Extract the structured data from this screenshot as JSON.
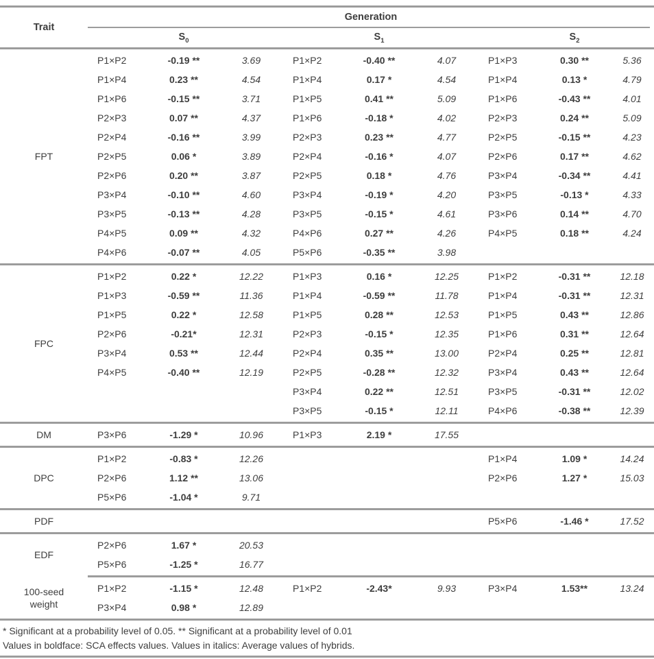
{
  "header": {
    "trait_label": "Trait",
    "generation_label": "Generation",
    "generations": [
      {
        "base": "S",
        "sub": "0"
      },
      {
        "base": "S",
        "sub": "1"
      },
      {
        "base": "S",
        "sub": "2"
      }
    ]
  },
  "table": {
    "groups": [
      {
        "trait": "FPT",
        "rows": [
          [
            [
              "P1×P2",
              "-0.19 **",
              "3.69"
            ],
            [
              "P1×P2",
              "-0.40 **",
              "4.07"
            ],
            [
              "P1×P3",
              "0.30 **",
              "5.36"
            ]
          ],
          [
            [
              "P1×P4",
              "0.23 **",
              "4.54"
            ],
            [
              "P1×P4",
              "0.17 *",
              "4.54"
            ],
            [
              "P1×P4",
              "0.13 *",
              "4.79"
            ]
          ],
          [
            [
              "P1×P6",
              "-0.15 **",
              "3.71"
            ],
            [
              "P1×P5",
              "0.41 **",
              "5.09"
            ],
            [
              "P1×P6",
              "-0.43 **",
              "4.01"
            ]
          ],
          [
            [
              "P2×P3",
              "0.07 **",
              "4.37"
            ],
            [
              "P1×P6",
              "-0.18 *",
              "4.02"
            ],
            [
              "P2×P3",
              "0.24 **",
              "5.09"
            ]
          ],
          [
            [
              "P2×P4",
              "-0.16 **",
              "3.99"
            ],
            [
              "P2×P3",
              "0.23 **",
              "4.77"
            ],
            [
              "P2×P5",
              "-0.15 **",
              "4.23"
            ]
          ],
          [
            [
              "P2×P5",
              "0.06 *",
              "3.89"
            ],
            [
              "P2×P4",
              "-0.16 *",
              "4.07"
            ],
            [
              "P2×P6",
              "0.17 **",
              "4.62"
            ]
          ],
          [
            [
              "P2×P6",
              "0.20 **",
              "3.87"
            ],
            [
              "P2×P5",
              "0.18 *",
              "4.76"
            ],
            [
              "P3×P4",
              "-0.34 **",
              "4.41"
            ]
          ],
          [
            [
              "P3×P4",
              "-0.10 **",
              "4.60"
            ],
            [
              "P3×P4",
              "-0.19 *",
              "4.20"
            ],
            [
              "P3×P5",
              "-0.13 *",
              "4.33"
            ]
          ],
          [
            [
              "P3×P5",
              "-0.13 **",
              "4.28"
            ],
            [
              "P3×P5",
              "-0.15 *",
              "4.61"
            ],
            [
              "P3×P6",
              "0.14 **",
              "4.70"
            ]
          ],
          [
            [
              "P4×P5",
              "0.09 **",
              "4.32"
            ],
            [
              "P4×P6",
              "0.27 **",
              "4.26"
            ],
            [
              "P4×P5",
              "0.18 **",
              "4.24"
            ]
          ],
          [
            [
              "P4×P6",
              "-0.07 **",
              "4.05"
            ],
            [
              "P5×P6",
              "-0.35 **",
              "3.98"
            ],
            null
          ]
        ]
      },
      {
        "trait": "FPC",
        "rows": [
          [
            [
              "P1×P2",
              "0.22 *",
              "12.22"
            ],
            [
              "P1×P3",
              "0.16 *",
              "12.25"
            ],
            [
              "P1×P2",
              "-0.31 **",
              "12.18"
            ]
          ],
          [
            [
              "P1×P3",
              "-0.59 **",
              "11.36"
            ],
            [
              "P1×P4",
              "-0.59 **",
              "11.78"
            ],
            [
              "P1×P4",
              "-0.31 **",
              "12.31"
            ]
          ],
          [
            [
              "P1×P5",
              "0.22 *",
              "12.58"
            ],
            [
              "P1×P5",
              "0.28 **",
              "12.53"
            ],
            [
              "P1×P5",
              "0.43 **",
              "12.86"
            ]
          ],
          [
            [
              "P2×P6",
              "-0.21*",
              "12.31"
            ],
            [
              "P2×P3",
              "-0.15 *",
              "12.35"
            ],
            [
              "P1×P6",
              "0.31 **",
              "12.64"
            ]
          ],
          [
            [
              "P3×P4",
              "0.53 **",
              "12.44"
            ],
            [
              "P2×P4",
              "0.35 **",
              "13.00"
            ],
            [
              "P2×P4",
              "0.25 **",
              "12.81"
            ]
          ],
          [
            [
              "P4×P5",
              "-0.40 **",
              "12.19"
            ],
            [
              "P2×P5",
              "-0.28 **",
              "12.32"
            ],
            [
              "P3×P4",
              "0.43 **",
              "12.64"
            ]
          ],
          [
            null,
            [
              "P3×P4",
              "0.22 **",
              "12.51"
            ],
            [
              "P3×P5",
              "-0.31 **",
              "12.02"
            ]
          ],
          [
            null,
            [
              "P3×P5",
              "-0.15 *",
              "12.11"
            ],
            [
              "P4×P6",
              "-0.38 **",
              "12.39"
            ]
          ]
        ]
      },
      {
        "trait": "DM",
        "rows": [
          [
            [
              "P3×P6",
              "-1.29 *",
              "10.96"
            ],
            [
              "P1×P3",
              "2.19 *",
              "17.55"
            ],
            null
          ]
        ]
      },
      {
        "trait": "DPC",
        "rows": [
          [
            [
              "P1×P2",
              "-0.83 *",
              "12.26"
            ],
            null,
            [
              "P1×P4",
              "1.09 *",
              "14.24"
            ]
          ],
          [
            [
              "P2×P6",
              "1.12 **",
              "13.06"
            ],
            null,
            [
              "P2×P6",
              "1.27 *",
              "15.03"
            ]
          ],
          [
            [
              "P5×P6",
              "-1.04 *",
              "9.71"
            ],
            null,
            null
          ]
        ]
      },
      {
        "trait": "PDF",
        "rows": [
          [
            null,
            null,
            [
              "P5×P6",
              "-1.46 *",
              "17.52"
            ]
          ]
        ]
      },
      {
        "trait": "EDF",
        "rows": [
          [
            [
              "P2×P6",
              "1.67 *",
              "20.53"
            ],
            null,
            null
          ],
          [
            [
              "P5×P6",
              "-1.25 *",
              "16.77"
            ],
            null,
            null
          ]
        ]
      },
      {
        "trait": "100-seed weight",
        "rows": [
          [
            [
              "P1×P2",
              "-1.15 *",
              "12.48"
            ],
            [
              "P1×P2",
              "-2.43*",
              "9.93"
            ],
            [
              "P3×P4",
              "1.53**",
              "13.24"
            ]
          ],
          [
            [
              "P3×P4",
              "0.98 *",
              "12.89"
            ],
            null,
            null
          ]
        ]
      }
    ]
  },
  "footnotes": [
    "*  Significant at a probability level of 0.05. ** Significant at a probability level of 0.01",
    "Values in boldface: SCA effects values. Values in italics: Average values of hybrids."
  ]
}
